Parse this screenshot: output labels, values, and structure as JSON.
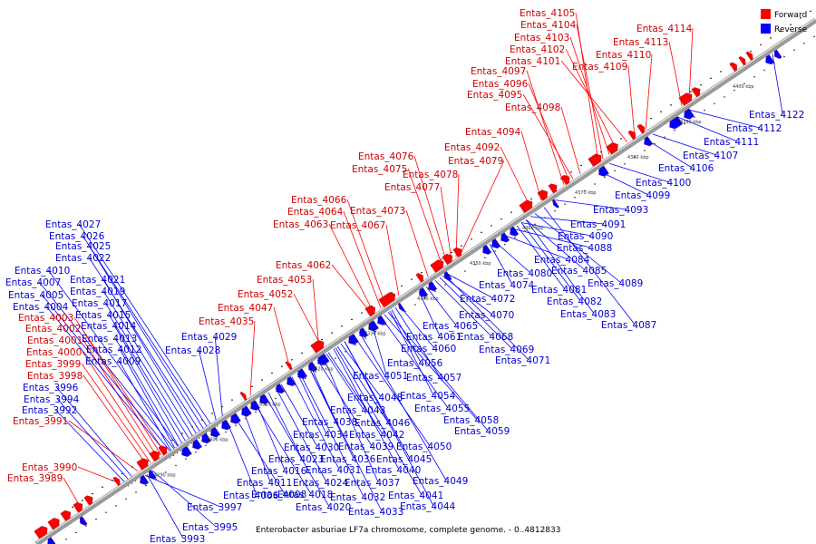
{
  "caption": "Enterobacter asburiae LF7a chromosome, complete genome. - 0..4812833",
  "legend": {
    "forward_label": "Forward",
    "reverse_label": "Reverse",
    "forward_color": "#ff0000",
    "reverse_color": "#0000ff"
  },
  "label_colors": {
    "forward": "#cc0000",
    "reverse": "#0000cc"
  },
  "scale_ticks": [
    "4290 kbp",
    "4300 kbp",
    "4310 kbp",
    "4320 kbp",
    "4330 kbp",
    "4340 kbp",
    "4350 kbp",
    "4360 kbp",
    "4370 kbp",
    "4380 kbp",
    "4390 kbp",
    "4400 kbp"
  ],
  "forward_genes": [
    "Entas_4105",
    "Entas_4104",
    "Entas_4103",
    "Entas_4102",
    "Entas_4101",
    "Entas_4097",
    "Entas_4096",
    "Entas_4095",
    "Entas_4098",
    "Entas_4094",
    "Entas_4092",
    "Entas_4076",
    "Entas_4075",
    "Entas_4079",
    "Entas_4078",
    "Entas_4077",
    "Entas_4066",
    "Entas_4064",
    "Entas_4063",
    "Entas_4073",
    "Entas_4067",
    "Entas_4062",
    "Entas_4053",
    "Entas_4052",
    "Entas_4047",
    "Entas_4035",
    "Entas_4003",
    "Entas_4002",
    "Entas_4001",
    "Entas_4000",
    "Entas_3999",
    "Entas_3998",
    "Entas_3991",
    "Entas_3990",
    "Entas_3989",
    "Entas_4114",
    "Entas_4113",
    "Entas_4110",
    "Entas_4109"
  ],
  "reverse_genes": [
    "Entas_4027",
    "Entas_4026",
    "Entas_4025",
    "Entas_4022",
    "Entas_4010",
    "Entas_4021",
    "Entas_4007",
    "Entas_4019",
    "Entas_4005",
    "Entas_4017",
    "Entas_4004",
    "Entas_4015",
    "Entas_4014",
    "Entas_4013",
    "Entas_4012",
    "Entas_4009",
    "Entas_3996",
    "Entas_3994",
    "Entas_3992",
    "Entas_4029",
    "Entas_4028",
    "Entas_4122",
    "Entas_4112",
    "Entas_4111",
    "Entas_4107",
    "Entas_4106",
    "Entas_4100",
    "Entas_4099",
    "Entas_4093",
    "Entas_4091",
    "Entas_4090",
    "Entas_4088",
    "Entas_4084",
    "Entas_4085",
    "Entas_4089",
    "Entas_4080",
    "Entas_4074",
    "Entas_4081",
    "Entas_4082",
    "Entas_4083",
    "Entas_4087",
    "Entas_4072",
    "Entas_4070",
    "Entas_4065",
    "Entas_4061",
    "Entas_4068",
    "Entas_4069",
    "Entas_4071",
    "Entas_4060",
    "Entas_4056",
    "Entas_4057",
    "Entas_4051",
    "Entas_4054",
    "Entas_4048",
    "Entas_4043",
    "Entas_4055",
    "Entas_4038",
    "Entas_4046",
    "Entas_4058",
    "Entas_4034",
    "Entas_4042",
    "Entas_4059",
    "Entas_4030",
    "Entas_4039",
    "Entas_4050",
    "Entas_4023",
    "Entas_4036",
    "Entas_4045",
    "Entas_4016",
    "Entas_4031",
    "Entas_4040",
    "Entas_4011",
    "Entas_4024",
    "Entas_4037",
    "Entas_4049",
    "Entas_4006",
    "Entas_4008",
    "Entas_4018",
    "Entas_4032",
    "Entas_4041",
    "Entas_4020",
    "Entas_4033",
    "Entas_4044",
    "Entas_3997",
    "Entas_3995",
    "Entas_3993"
  ]
}
